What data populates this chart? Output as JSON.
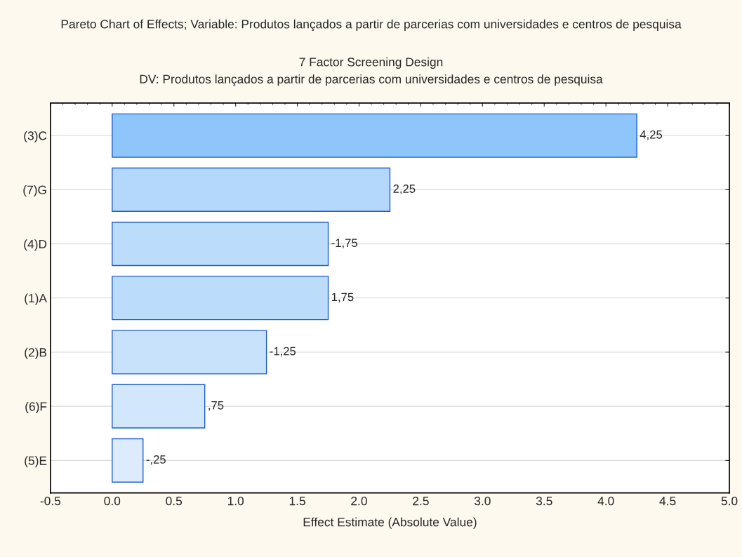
{
  "chart_data": {
    "type": "bar",
    "orientation": "horizontal",
    "title": "Pareto Chart of Effects; Variable: Produtos lançados a partir de parcerias com universidades e centros de pesquisa",
    "subtitle": "7 Factor Screening Design\nDV: Produtos lançados a partir de parcerias com universidades e centros de pesquisa",
    "xlabel": "Effect Estimate (Absolute Value)",
    "categories": [
      "(3)C",
      "(7)G",
      "(4)D",
      "(1)A",
      "(2)B",
      "(6)F",
      "(5)E"
    ],
    "values": [
      4.25,
      2.25,
      1.75,
      1.75,
      1.25,
      0.75,
      0.25
    ],
    "annotations": [
      {
        "text": "4,25",
        "x": 4.25,
        "y": "(3)C"
      },
      {
        "text": "2,25",
        "x": 2.25,
        "y": "(7)G"
      },
      {
        "text": "-1,75",
        "x": 1.75,
        "y": "(4)D"
      },
      {
        "text": "1,75",
        "x": 1.75,
        "y": "(1)A"
      },
      {
        "text": "-1,25",
        "x": 1.25,
        "y": "(2)B"
      },
      {
        "text": ",75",
        "x": 0.75,
        "y": "(6)F"
      },
      {
        "text": "-,25",
        "x": 0.25,
        "y": "(5)E"
      }
    ],
    "colors": [
      "#8ec5fb",
      "#b4d8fc",
      "#bcdcfc",
      "#bcdcfc",
      "#c8e2fc",
      "#d2e7fc",
      "#dcecfd"
    ],
    "xlim": [
      -0.5,
      5.0
    ],
    "xticks": [
      {
        "value": -0.5,
        "label": "-0.5"
      },
      {
        "value": 0.0,
        "label": "0.0"
      },
      {
        "value": 0.5,
        "label": "0.5"
      },
      {
        "value": 1.0,
        "label": "1.0"
      },
      {
        "value": 1.5,
        "label": "1.5"
      },
      {
        "value": 2.0,
        "label": "2.0"
      },
      {
        "value": 2.5,
        "label": "2.5"
      },
      {
        "value": 3.0,
        "label": "3.0"
      },
      {
        "value": 3.5,
        "label": "3.5"
      },
      {
        "value": 4.0,
        "label": "4.0"
      },
      {
        "value": 4.5,
        "label": "4.5"
      },
      {
        "value": 5.0,
        "label": "5.0"
      }
    ],
    "grid": "y"
  }
}
